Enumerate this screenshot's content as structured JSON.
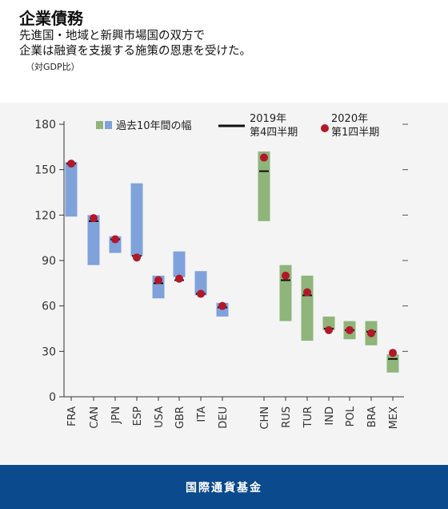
{
  "header": {
    "title": "企業債務",
    "subtitle_line1": "先進国・地域と新興市場国の双方で",
    "subtitle_line2": "企業は融資を支援する施策の恩恵を受けた。",
    "unit": "（対GDP比）"
  },
  "legend": {
    "range_label": "過去10年間の幅",
    "q4_line1": "2019年",
    "q4_line2": "第4四半期",
    "q1_line1": "2020年",
    "q1_line2": "第1四半期"
  },
  "colors": {
    "advanced_bar": "#7fa2db",
    "emerging_bar": "#8fb57a",
    "dot": "#b3172a",
    "q4_line": "#111111",
    "footer_bg": "#0b4a8c"
  },
  "chart_data": {
    "type": "range_bar_with_markers",
    "ylim": [
      0,
      180
    ],
    "yticks": [
      0,
      30,
      60,
      90,
      120,
      150,
      180
    ],
    "categories": [
      "FRA",
      "CAN",
      "JPN",
      "ESP",
      "USA",
      "GBR",
      "ITA",
      "DEU",
      "CHN",
      "RUS",
      "TUR",
      "IND",
      "POL",
      "BRA",
      "MEX"
    ],
    "group": [
      "advanced",
      "advanced",
      "advanced",
      "advanced",
      "advanced",
      "advanced",
      "advanced",
      "advanced",
      "emerging",
      "emerging",
      "emerging",
      "emerging",
      "emerging",
      "emerging",
      "emerging"
    ],
    "range_low": [
      119,
      87,
      95,
      93,
      65,
      79,
      67,
      53,
      116,
      50,
      37,
      44,
      38,
      34,
      16
    ],
    "range_high": [
      155,
      120,
      106,
      141,
      80,
      96,
      83,
      62,
      162,
      87,
      80,
      53,
      50,
      50,
      28
    ],
    "q4_2019": [
      154,
      116,
      104,
      93,
      75,
      77,
      68,
      59,
      149,
      77,
      67,
      45,
      44,
      43,
      25
    ],
    "q1_2020": [
      154,
      118,
      104,
      92,
      77,
      78,
      68,
      60,
      158,
      80,
      69,
      44,
      44,
      42,
      29
    ]
  },
  "footer": {
    "text": "国際通貨基金"
  }
}
